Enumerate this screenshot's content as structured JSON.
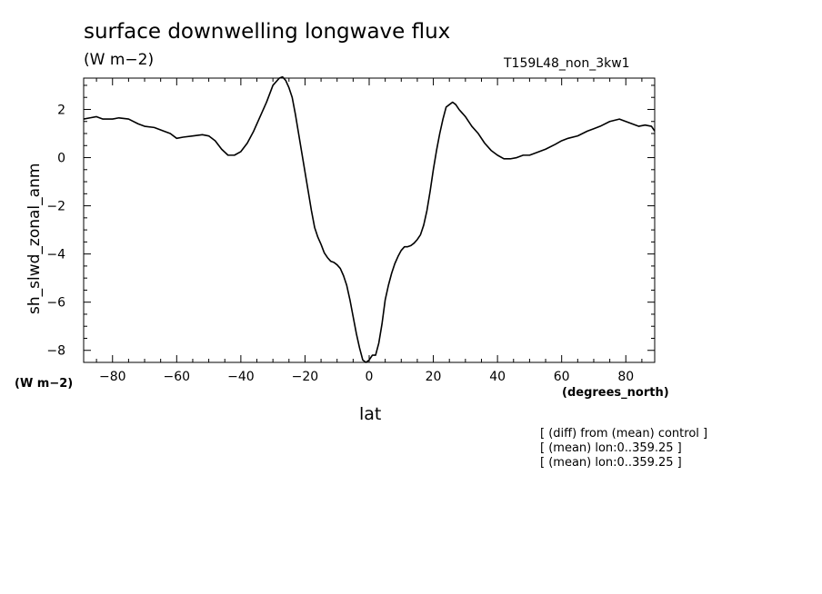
{
  "header": {
    "title": "surface downwelling longwave flux",
    "units": "(W m−2)",
    "run_label": "T159L48_non_3kw1"
  },
  "axis_units": {
    "y": "(W m−2)",
    "x": "(degrees_north)"
  },
  "notes": [
    "[ (diff) from (mean) control ]",
    "[ (mean) lon:0..359.25 ]",
    "[ (mean) lon:0..359.25 ]"
  ],
  "chart_data": {
    "type": "line",
    "title": "surface downwelling longwave flux",
    "xlabel": "lat",
    "ylabel": "sh_slwd_zonal_anm",
    "xlim": [
      -89,
      89
    ],
    "ylim": [
      -8.5,
      3.3
    ],
    "x_ticks": [
      -80,
      -60,
      -40,
      -20,
      0,
      20,
      40,
      60,
      80
    ],
    "x_tick_labels": [
      "−80",
      "−60",
      "−40",
      "−20",
      "0",
      "20",
      "40",
      "60",
      "80"
    ],
    "y_ticks": [
      -8,
      -6,
      -4,
      -2,
      0,
      2
    ],
    "y_tick_labels": [
      "−8",
      "−6",
      "−4",
      "−2",
      "0",
      "2"
    ],
    "grid": false,
    "series": [
      {
        "x": [
          -89,
          -87,
          -85,
          -83,
          -80,
          -78,
          -75,
          -72,
          -70,
          -67,
          -64,
          -62,
          -60,
          -58,
          -55,
          -52,
          -50,
          -48,
          -46,
          -44,
          -42,
          -40,
          -38,
          -36,
          -34,
          -32,
          -30,
          -28,
          -27,
          -26,
          -25,
          -24,
          -23,
          -22,
          -21,
          -20,
          -19,
          -18,
          -17,
          -16,
          -15,
          -14,
          -13,
          -12,
          -11,
          -10,
          -9,
          -8,
          -7,
          -6,
          -5,
          -4,
          -3,
          -2,
          -1,
          0,
          1,
          2,
          3,
          4,
          5,
          6,
          7,
          8,
          9,
          10,
          11,
          12,
          13,
          14,
          15,
          16,
          17,
          18,
          19,
          20,
          21,
          22,
          23,
          24,
          25,
          26,
          27,
          28,
          30,
          32,
          34,
          36,
          38,
          40,
          42,
          44,
          46,
          48,
          50,
          52,
          55,
          58,
          60,
          62,
          65,
          68,
          70,
          72,
          75,
          78,
          80,
          82,
          84,
          86,
          88,
          89
        ],
        "values": [
          1.6,
          1.65,
          1.7,
          1.6,
          1.6,
          1.65,
          1.6,
          1.4,
          1.3,
          1.25,
          1.1,
          1.0,
          0.8,
          0.85,
          0.9,
          0.95,
          0.9,
          0.7,
          0.35,
          0.1,
          0.1,
          0.25,
          0.6,
          1.1,
          1.7,
          2.3,
          3.0,
          3.3,
          3.35,
          3.2,
          2.9,
          2.5,
          1.8,
          1.0,
          0.2,
          -0.6,
          -1.4,
          -2.2,
          -2.9,
          -3.3,
          -3.6,
          -3.95,
          -4.15,
          -4.3,
          -4.35,
          -4.45,
          -4.6,
          -4.9,
          -5.3,
          -5.9,
          -6.6,
          -7.3,
          -7.9,
          -8.4,
          -8.5,
          -8.4,
          -8.2,
          -8.2,
          -7.7,
          -6.9,
          -5.9,
          -5.3,
          -4.8,
          -4.4,
          -4.1,
          -3.85,
          -3.7,
          -3.7,
          -3.65,
          -3.55,
          -3.4,
          -3.2,
          -2.8,
          -2.2,
          -1.4,
          -0.5,
          0.3,
          1.0,
          1.6,
          2.1,
          2.2,
          2.3,
          2.2,
          2.0,
          1.7,
          1.3,
          1.0,
          0.6,
          0.3,
          0.1,
          -0.05,
          -0.05,
          0.0,
          0.1,
          0.1,
          0.2,
          0.35,
          0.55,
          0.7,
          0.8,
          0.9,
          1.1,
          1.2,
          1.3,
          1.5,
          1.6,
          1.5,
          1.4,
          1.3,
          1.35,
          1.3,
          1.1
        ]
      }
    ]
  }
}
